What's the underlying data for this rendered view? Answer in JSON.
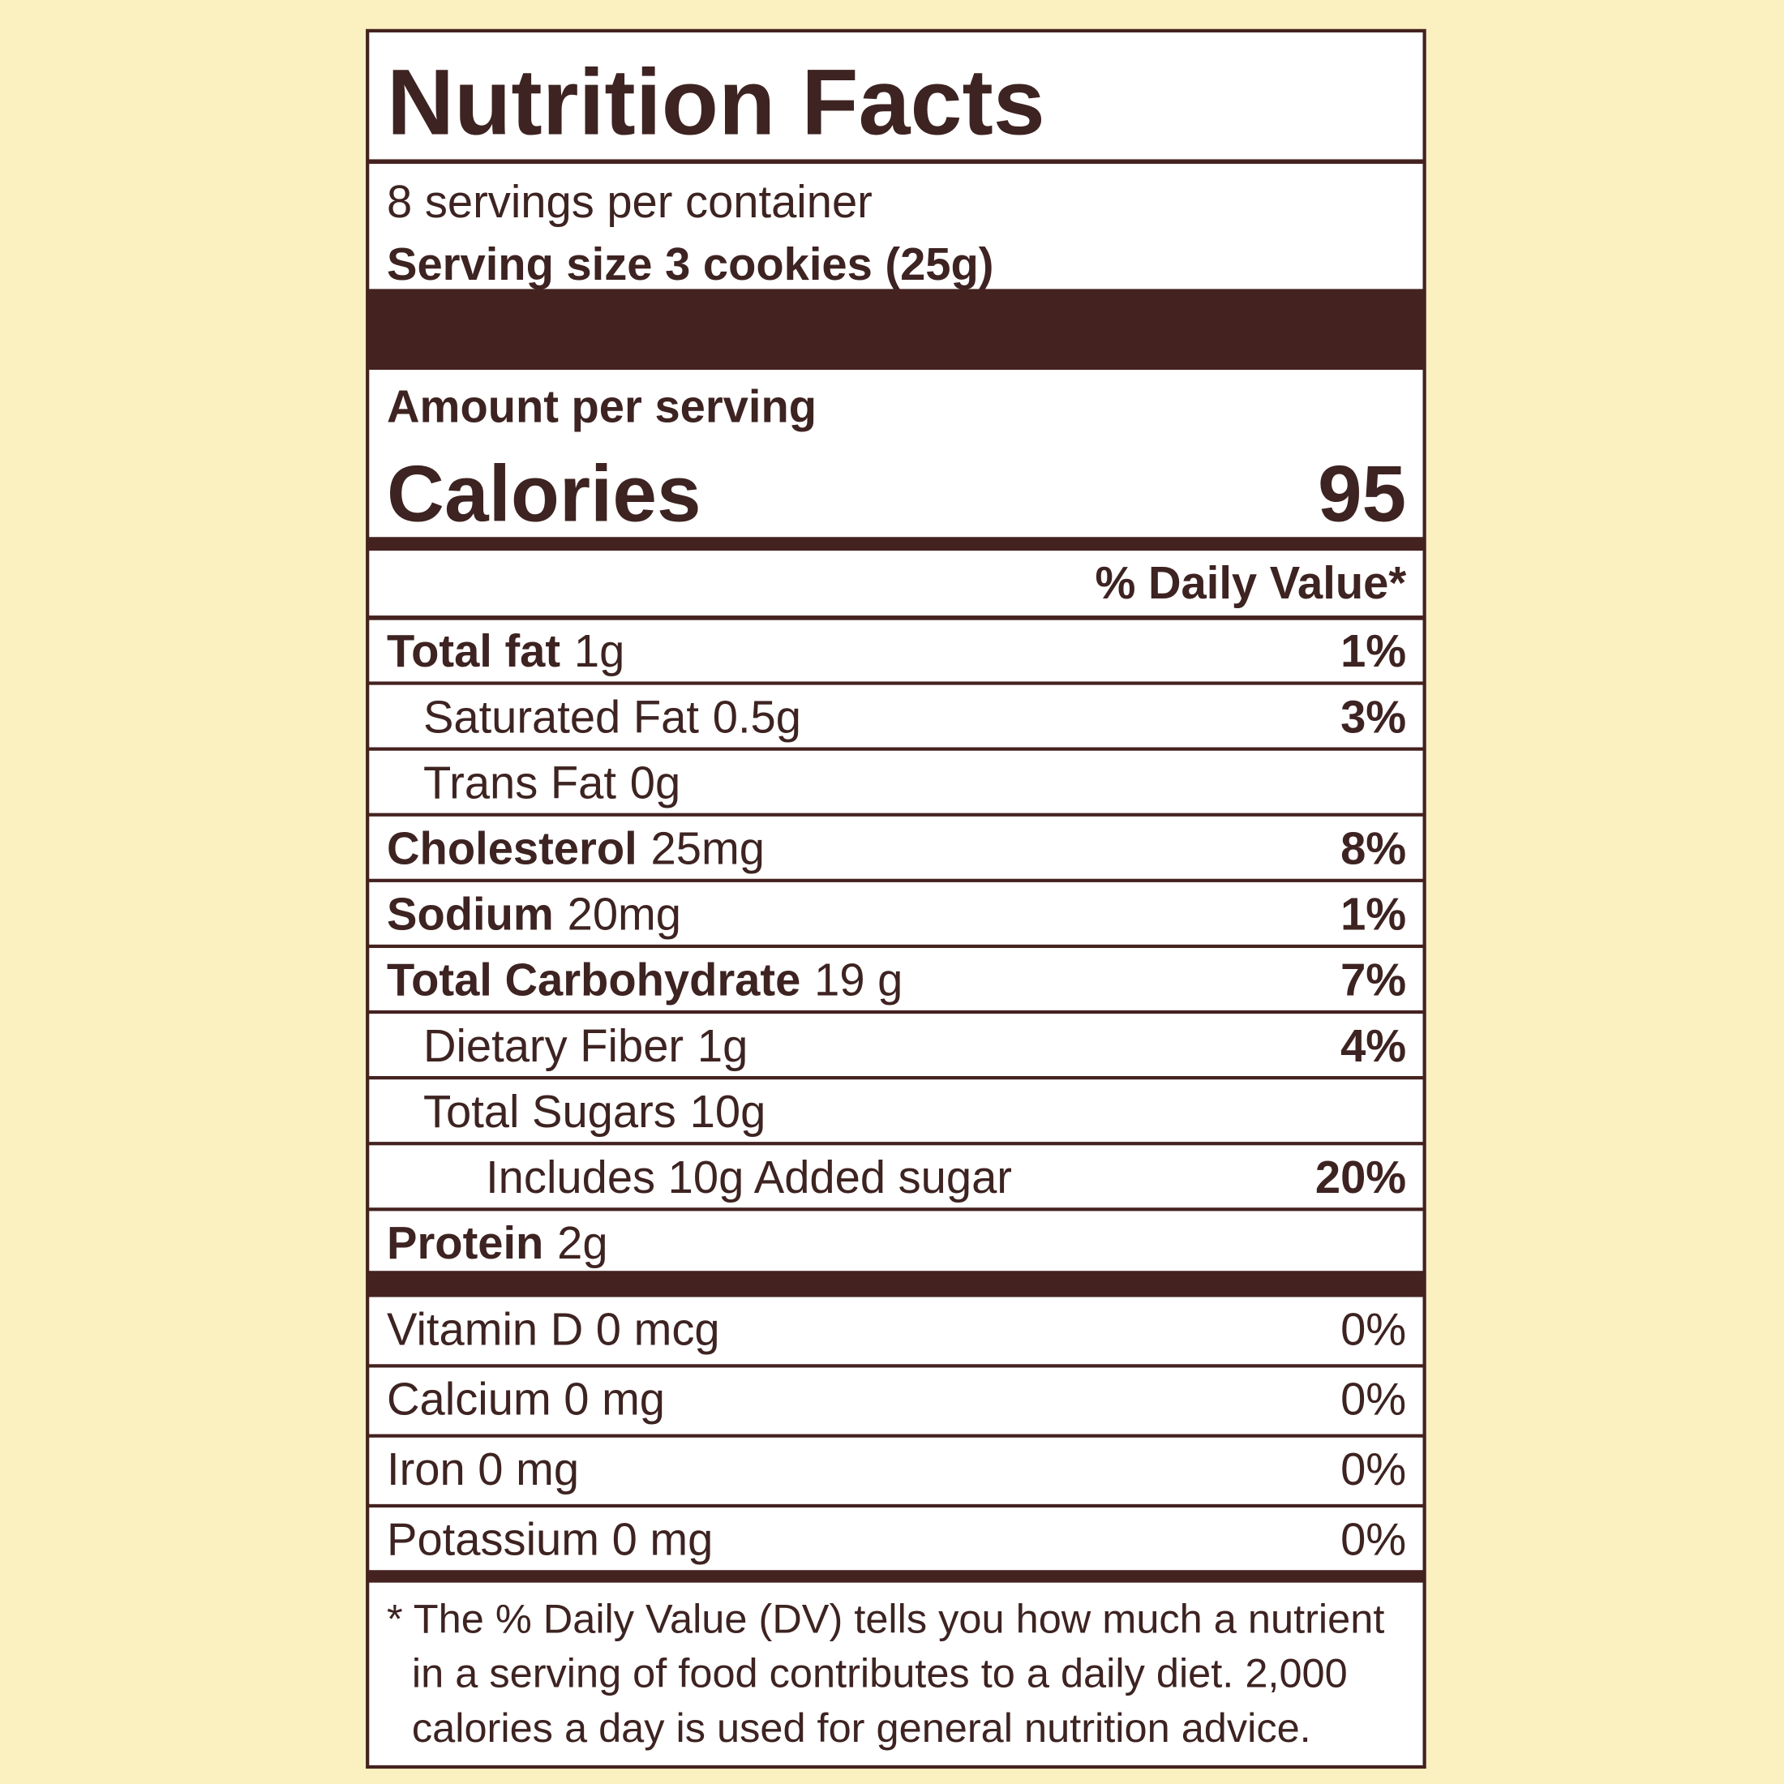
{
  "title": "Nutrition Facts",
  "servings_per_container": "8 servings per container",
  "serving_size": "Serving size 3 cookies (25g)",
  "amount_per_serving": "Amount per serving",
  "calories": {
    "label": "Calories",
    "value": "95"
  },
  "daily_value_header": "% Daily Value*",
  "nutrients": [
    {
      "name": "Total fat",
      "amount": "1g",
      "dv": "1%"
    },
    {
      "name": "Saturated Fat",
      "amount": "0.5g",
      "dv": "3%"
    },
    {
      "name": "Trans Fat",
      "amount": "0g"
    },
    {
      "name": "Cholesterol",
      "amount": "25mg",
      "dv": "8%"
    },
    {
      "name": "Sodium",
      "amount": "20mg",
      "dv": "1%"
    },
    {
      "name": "Total Carbohydrate",
      "amount": "19 g",
      "dv": "7%"
    },
    {
      "name": "Dietary Fiber",
      "amount": "1g",
      "dv": "4%"
    },
    {
      "name": "Total Sugars",
      "amount": "10g"
    },
    {
      "name": "Includes 10g Added sugar",
      "dv": "20%"
    },
    {
      "name": "Protein",
      "amount": "2g"
    }
  ],
  "vitamins": [
    {
      "name": "Vitamin D 0 mcg",
      "dv": "0%"
    },
    {
      "name": "Calcium 0 mg",
      "dv": "0%"
    },
    {
      "name": "Iron 0 mg",
      "dv": "0%"
    },
    {
      "name": "Potassium 0 mg",
      "dv": "0%"
    }
  ],
  "footnote": [
    "* The % Daily Value (DV) tells you how much a nutrient",
    "in a serving of food contributes to a daily diet. 2,000",
    "calories a day is used for general nutrition advice."
  ]
}
